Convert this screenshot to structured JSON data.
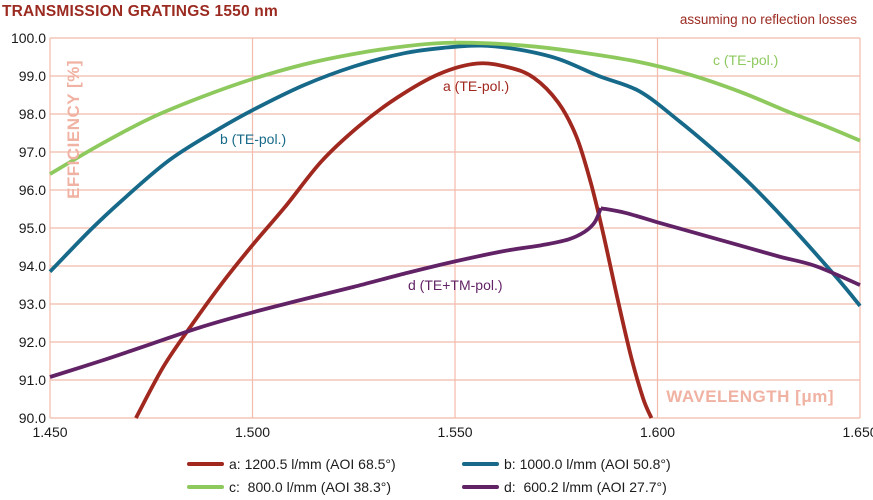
{
  "title": "TRANSMISSION GRATINGS 1550 nm",
  "subtitle": "assuming no reflection losses",
  "colors": {
    "title": "#9B2A21",
    "grid": "#F2BBAB",
    "axis_title": "#F0B2A2",
    "a": "#A0281F",
    "b": "#17698A",
    "c": "#8EC95E",
    "d": "#622366"
  },
  "axes": {
    "y_title": "EFFICIENCY [%]",
    "x_title": "WAVELENGTH [μm]",
    "y_tick_labels": [
      "100.0",
      "99.0",
      "98.0",
      "97.0",
      "96.0",
      "95.0",
      "94.0",
      "93.0",
      "92.0",
      "91.0",
      "90.0"
    ],
    "x_tick_labels": [
      "1.450",
      "1.500",
      "1.550",
      "1.600",
      "1.650"
    ]
  },
  "curve_labels": {
    "a": "a (TE-pol.)",
    "b": "b (TE-pol.)",
    "c": "c (TE-pol.)",
    "d": "d (TE+TM-pol.)"
  },
  "legend": [
    {
      "id": "a",
      "label": "a: 1200.5 l/mm (AOI 68.5°)"
    },
    {
      "id": "b",
      "label": "b: 1000.0 l/mm (AOI 50.8°)"
    },
    {
      "id": "c",
      "label": "c:  800.0 l/mm (AOI 38.3°)"
    },
    {
      "id": "d",
      "label": "d:  600.2 l/mm (AOI 27.7°)"
    }
  ],
  "chart_data": {
    "type": "line",
    "title": "TRANSMISSION GRATINGS 1550 nm",
    "annotation": "assuming no reflection losses",
    "xlabel": "WAVELENGTH [μm]",
    "ylabel": "EFFICIENCY [%]",
    "xlim": [
      1.45,
      1.65
    ],
    "ylim": [
      90.0,
      100.0
    ],
    "x_ticks": [
      1.45,
      1.5,
      1.55,
      1.6,
      1.65
    ],
    "y_tick_step": 1.0,
    "grid": true,
    "legend_position": "bottom",
    "series": [
      {
        "id": "a",
        "name": "a: 1200.5 l/mm (AOI 68.5°)",
        "curve_label": "a (TE-pol.)",
        "segments": [
          [
            [
              1.4712,
              90.0
            ],
            [
              1.478,
              91.35
            ],
            [
              1.485,
              92.45
            ],
            [
              1.4925,
              93.55
            ],
            [
              1.5,
              94.55
            ],
            [
              1.508,
              95.55
            ],
            [
              1.517,
              96.75
            ],
            [
              1.5265,
              97.7
            ],
            [
              1.536,
              98.45
            ],
            [
              1.546,
              99.05
            ],
            [
              1.5555,
              99.33
            ],
            [
              1.5635,
              99.22
            ],
            [
              1.5695,
              98.95
            ],
            [
              1.5755,
              98.3
            ],
            [
              1.58,
              97.4
            ],
            [
              1.5835,
              96.2
            ],
            [
              1.5865,
              94.9
            ],
            [
              1.59,
              93.2
            ],
            [
              1.5935,
              91.6
            ],
            [
              1.5965,
              90.5
            ],
            [
              1.5985,
              90.0
            ]
          ]
        ]
      },
      {
        "id": "b",
        "name": "b: 1000.0 l/mm (AOI 50.8°)",
        "curve_label": "b (TE-pol.)",
        "segments": [
          [
            [
              1.45,
              93.85
            ],
            [
              1.46,
              94.95
            ],
            [
              1.4675,
              95.7
            ],
            [
              1.479,
              96.75
            ],
            [
              1.49,
              97.5
            ],
            [
              1.5,
              98.1
            ],
            [
              1.5125,
              98.75
            ],
            [
              1.525,
              99.25
            ],
            [
              1.5375,
              99.6
            ],
            [
              1.548,
              99.75
            ],
            [
              1.5565,
              99.8
            ],
            [
              1.5655,
              99.7
            ],
            [
              1.5755,
              99.45
            ],
            [
              1.5855,
              99.0
            ],
            [
              1.5955,
              98.6
            ],
            [
              1.6055,
              97.8
            ],
            [
              1.6155,
              96.9
            ],
            [
              1.6235,
              96.1
            ],
            [
              1.6325,
              95.1
            ],
            [
              1.6442,
              93.7
            ],
            [
              1.65,
              92.95
            ]
          ]
        ]
      },
      {
        "id": "c",
        "name": "c:  800.0 l/mm (AOI 38.3°)",
        "curve_label": "c (TE-pol.)",
        "segments": [
          [
            [
              1.45,
              96.42
            ],
            [
              1.4625,
              97.2
            ],
            [
              1.475,
              97.9
            ],
            [
              1.4875,
              98.45
            ],
            [
              1.5,
              98.92
            ],
            [
              1.5125,
              99.3
            ],
            [
              1.525,
              99.58
            ],
            [
              1.5375,
              99.78
            ],
            [
              1.5475,
              99.87
            ],
            [
              1.558,
              99.86
            ],
            [
              1.57,
              99.77
            ],
            [
              1.5825,
              99.6
            ],
            [
              1.595,
              99.38
            ],
            [
              1.6075,
              99.05
            ],
            [
              1.62,
              98.6
            ],
            [
              1.6325,
              98.05
            ],
            [
              1.641,
              97.7
            ],
            [
              1.65,
              97.3
            ]
          ]
        ]
      },
      {
        "id": "d",
        "name": "d:  600.2 l/mm (AOI 27.7°)",
        "curve_label": "d (TE+TM-pol.)",
        "segments": [
          [
            [
              1.45,
              91.08
            ],
            [
              1.4625,
              91.5
            ],
            [
              1.475,
              91.95
            ],
            [
              1.4875,
              92.4
            ],
            [
              1.5,
              92.78
            ],
            [
              1.5125,
              93.12
            ],
            [
              1.525,
              93.45
            ],
            [
              1.5375,
              93.8
            ],
            [
              1.55,
              94.12
            ],
            [
              1.5625,
              94.4
            ],
            [
              1.5715,
              94.55
            ],
            [
              1.578,
              94.7
            ],
            [
              1.582,
              94.9
            ],
            [
              1.5845,
              95.15
            ],
            [
              1.586,
              95.52
            ]
          ],
          [
            [
              1.586,
              95.52
            ],
            [
              1.592,
              95.4
            ],
            [
              1.6,
              95.15
            ],
            [
              1.61,
              94.85
            ],
            [
              1.62,
              94.55
            ],
            [
              1.63,
              94.25
            ],
            [
              1.639,
              94.0
            ],
            [
              1.65,
              93.5
            ]
          ]
        ]
      }
    ]
  }
}
